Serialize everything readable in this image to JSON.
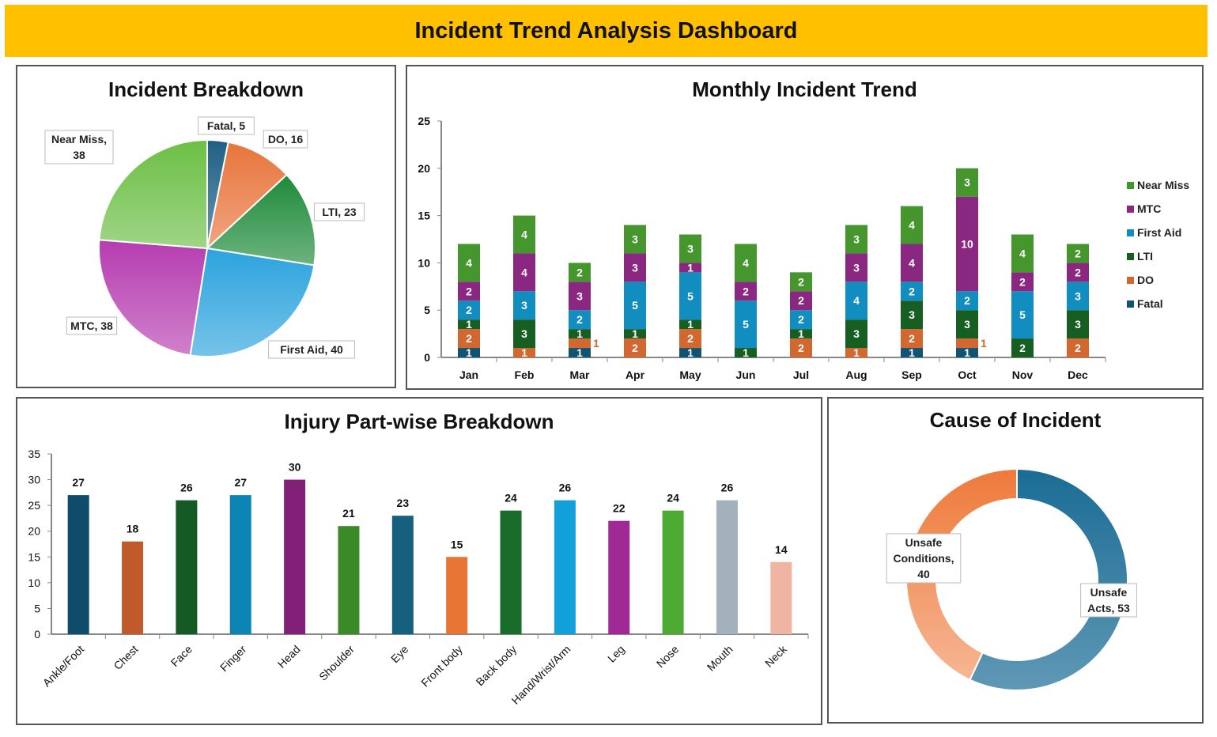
{
  "header": {
    "title": "Incident Trend Analysis Dashboard"
  },
  "chart_data": [
    {
      "type": "pie",
      "title": "Incident Breakdown",
      "categories": [
        "Fatal",
        "DO",
        "LTI",
        "First Aid",
        "MTC",
        "Near Miss"
      ],
      "values": [
        5,
        16,
        23,
        40,
        38,
        38
      ],
      "labels": [
        "Fatal, 5",
        "DO, 16",
        "LTI, 23",
        "First Aid, 40",
        "MTC, 38",
        "Near Miss, 38"
      ],
      "colors": [
        "#1F5F85",
        "#E8743B",
        "#1E8A3A",
        "#2CA3DD",
        "#B63DB0",
        "#6CBF45"
      ]
    },
    {
      "type": "bar",
      "stacked": true,
      "title": "Monthly Incident Trend",
      "categories": [
        "Jan",
        "Feb",
        "Mar",
        "Apr",
        "May",
        "Jun",
        "Jul",
        "Aug",
        "Sep",
        "Oct",
        "Nov",
        "Dec"
      ],
      "ylim": [
        0,
        25
      ],
      "yticks": [
        0,
        5,
        10,
        15,
        20,
        25
      ],
      "legend": "right",
      "series": [
        {
          "name": "Fatal",
          "color": "#115373",
          "values": [
            1,
            0,
            1,
            0,
            1,
            0,
            0,
            0,
            1,
            1,
            0,
            0
          ]
        },
        {
          "name": "DO",
          "color": "#D2672F",
          "values": [
            2,
            1,
            1,
            2,
            2,
            0,
            2,
            1,
            2,
            1,
            0,
            2
          ]
        },
        {
          "name": "LTI",
          "color": "#165E22",
          "values": [
            1,
            3,
            1,
            1,
            1,
            1,
            1,
            3,
            3,
            3,
            2,
            3
          ]
        },
        {
          "name": "First Aid",
          "color": "#118DC0",
          "values": [
            2,
            3,
            2,
            5,
            5,
            5,
            2,
            4,
            2,
            2,
            5,
            3
          ]
        },
        {
          "name": "MTC",
          "color": "#8A2781",
          "values": [
            2,
            4,
            3,
            3,
            1,
            2,
            2,
            3,
            4,
            10,
            2,
            2
          ]
        },
        {
          "name": "Near Miss",
          "color": "#44962D",
          "values": [
            4,
            4,
            2,
            3,
            3,
            4,
            2,
            3,
            4,
            3,
            4,
            2
          ]
        }
      ]
    },
    {
      "type": "bar",
      "title": "Injury Part-wise Breakdown",
      "categories": [
        "Ankle/Foot",
        "Chest",
        "Face",
        "Finger",
        "Head",
        "Shoulder",
        "Eye",
        "Front body",
        "Back body",
        "Hand/Wrist/Arm",
        "Leg",
        "Nose",
        "Mouth",
        "Neck"
      ],
      "values": [
        27,
        18,
        26,
        27,
        30,
        21,
        23,
        15,
        24,
        26,
        22,
        24,
        26,
        14
      ],
      "colors": [
        "#0F4C6B",
        "#C05A2A",
        "#155A24",
        "#0C85B5",
        "#822077",
        "#3B8A28",
        "#15607F",
        "#E77534",
        "#1A6C2B",
        "#11A0DA",
        "#A02A95",
        "#4DAA33",
        "#A3B1BD",
        "#F0B4A2"
      ],
      "ylim": [
        0,
        35
      ],
      "yticks": [
        0,
        5,
        10,
        15,
        20,
        25,
        30,
        35
      ]
    },
    {
      "type": "pie",
      "donut": true,
      "title": "Cause of Incident",
      "categories": [
        "Unsafe Acts",
        "Unsafe Conditions"
      ],
      "values": [
        53,
        40
      ],
      "labels": [
        "Unsafe Acts, 53",
        "Unsafe Conditions, 40"
      ],
      "colors": [
        "#1A6C95",
        "#EE7A3A"
      ]
    }
  ]
}
